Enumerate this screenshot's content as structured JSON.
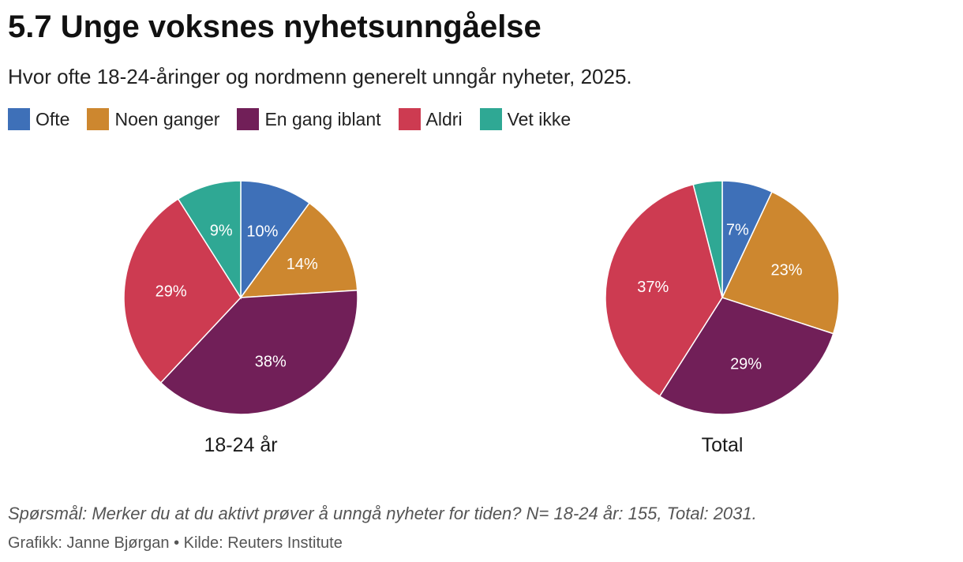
{
  "title": "5.7 Unge voksnes nyhetsunngåelse",
  "subtitle": "Hvor ofte 18-24-åringer og nordmenn generelt unngår nyheter, 2025.",
  "legend": [
    {
      "label": "Ofte",
      "color": "#3e70b8"
    },
    {
      "label": "Noen ganger",
      "color": "#cd872f"
    },
    {
      "label": "En gang iblant",
      "color": "#711f58"
    },
    {
      "label": "Aldri",
      "color": "#cd3b51"
    },
    {
      "label": "Vet ikke",
      "color": "#2fa894"
    }
  ],
  "chart_data": [
    {
      "type": "pie",
      "title": "18-24 år",
      "categories": [
        "Ofte",
        "Noen ganger",
        "En gang iblant",
        "Aldri",
        "Vet ikke"
      ],
      "values": [
        10,
        14,
        38,
        29,
        9
      ],
      "labels": [
        "10%",
        "14%",
        "38%",
        "29%",
        "9%"
      ]
    },
    {
      "type": "pie",
      "title": "Total",
      "categories": [
        "Ofte",
        "Noen ganger",
        "En gang iblant",
        "Aldri",
        "Vet ikke"
      ],
      "values": [
        7,
        23,
        29,
        37,
        4
      ],
      "labels": [
        "7%",
        "23%",
        "29%",
        "37%",
        ""
      ]
    }
  ],
  "note": "Spørsmål: Merker du at du aktivt prøver å unngå nyheter for tiden? N= 18-24 år: 155, Total: 2031.",
  "credit": "Grafikk: Janne Bjørgan • Kilde: Reuters Institute"
}
